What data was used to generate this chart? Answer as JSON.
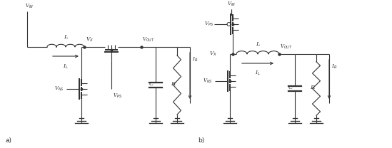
{
  "background_color": "#ffffff",
  "line_color": "#333333",
  "text_color": "#333333",
  "figsize": [
    5.49,
    2.08
  ],
  "dpi": 100,
  "label_a": "a)",
  "label_b": "b)",
  "circuit_a": {
    "VIN_label": "V$_{IN}$",
    "VX_label": "V$_{X}$",
    "VOUT_label": "V$_{OUT}$",
    "VNS_label": "V$_{NS}$",
    "VPS_label": "V$_{PS}$",
    "L_label": "L",
    "IL_label": "I$_{L}$",
    "C_label": "C",
    "R_label": "R",
    "IR_label": "I$_{R}$"
  },
  "circuit_b": {
    "VIN_label": "V$_{IN}$",
    "VX_label": "V$_{X}$",
    "VOUT_label": "V$_{OUT}$",
    "VNS_label": "V$_{NS}$",
    "VPS_label": "V$_{PS}$",
    "L_label": "L",
    "IL_label": "I$_{L}$",
    "C_label": "C",
    "R_label": "R",
    "IR_label": "I$_{R}$"
  }
}
